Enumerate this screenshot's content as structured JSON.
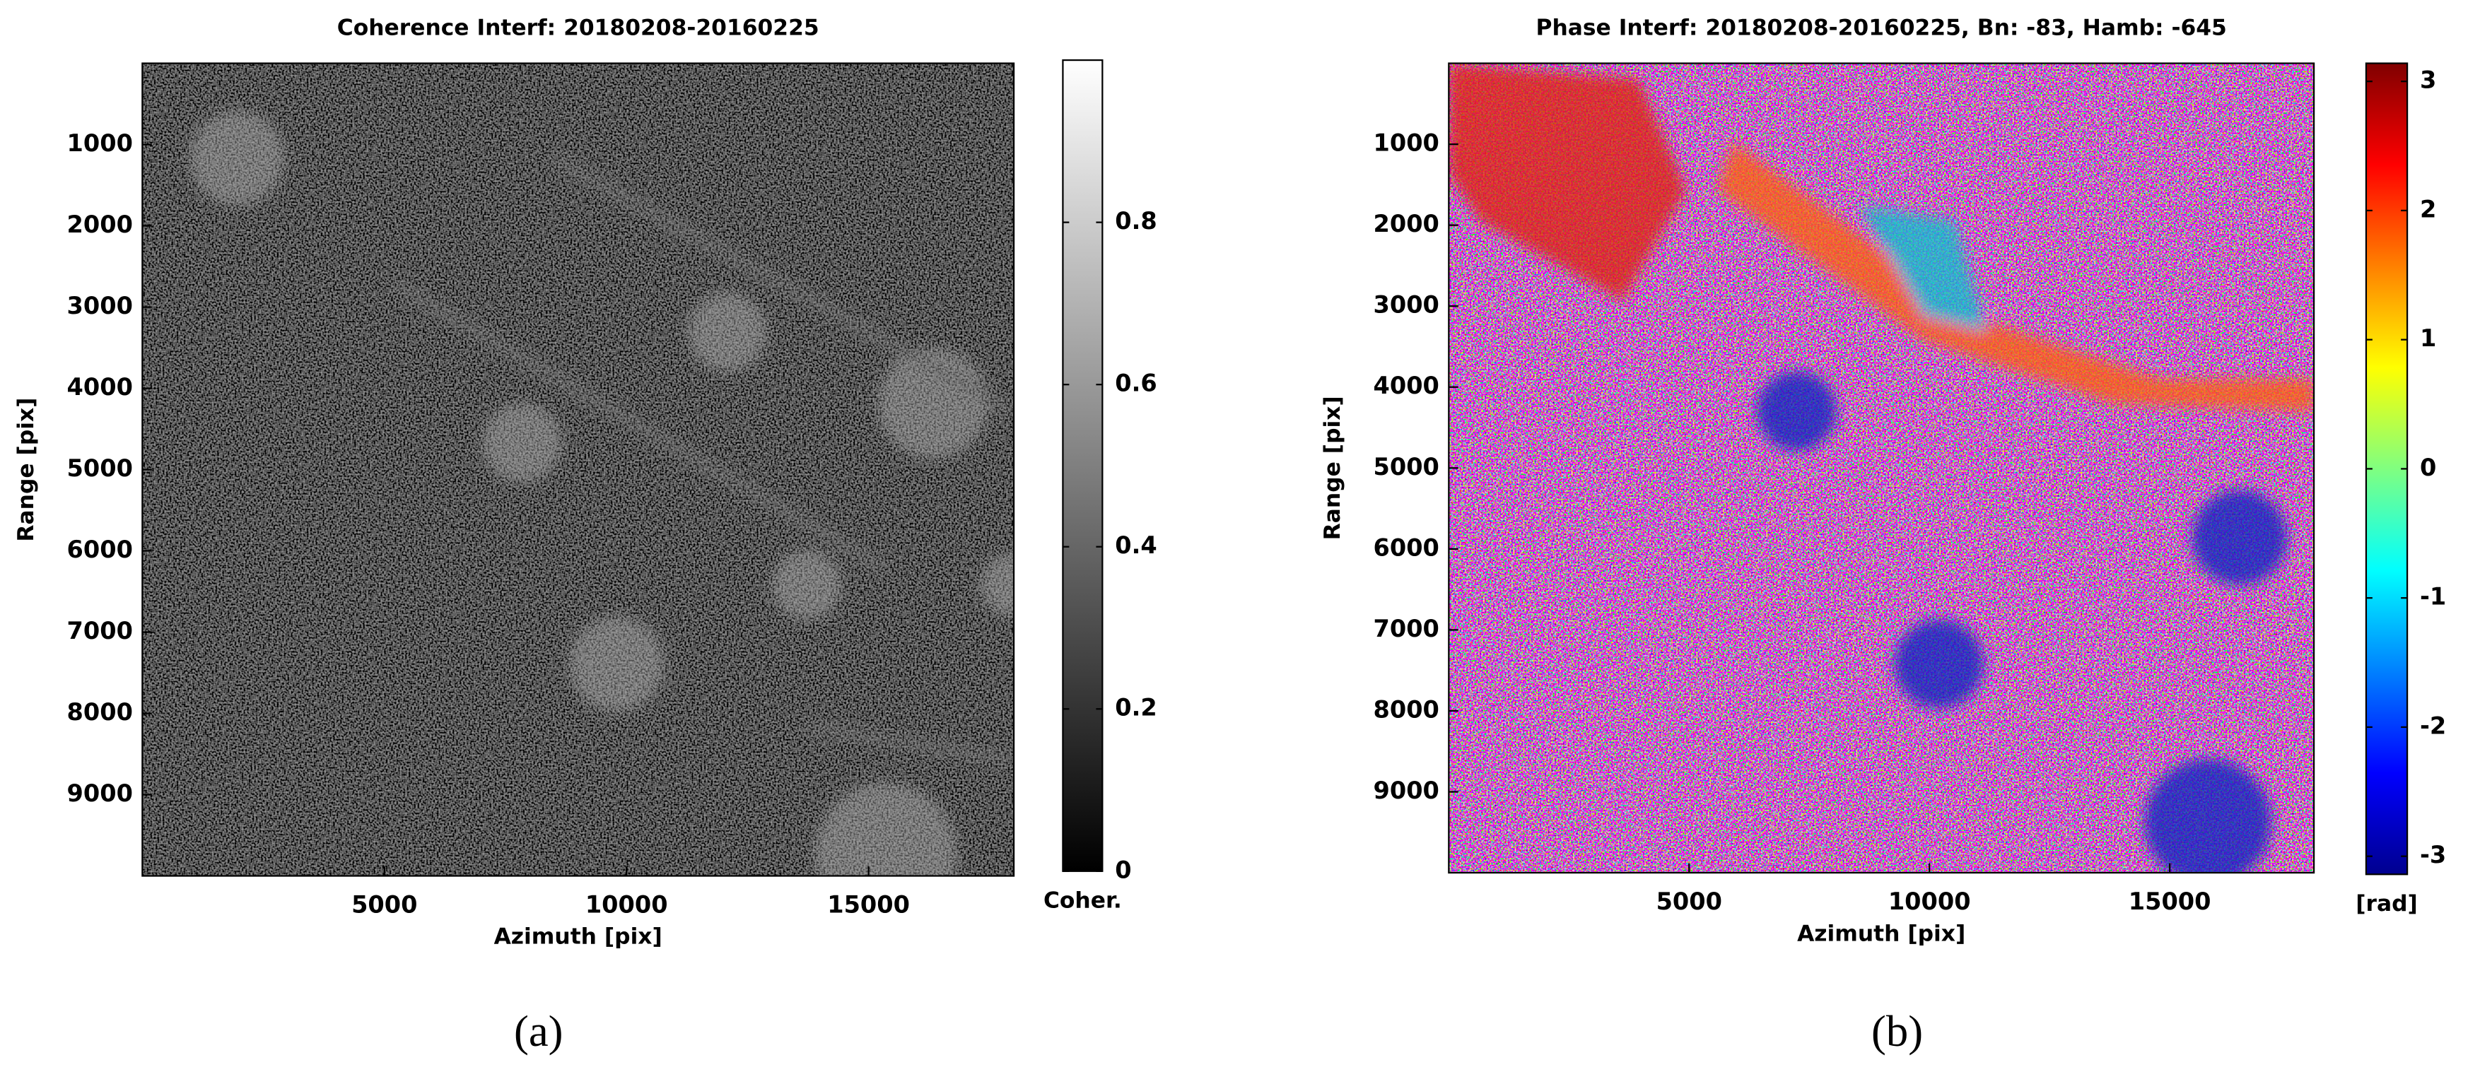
{
  "chart_data": [
    {
      "type": "image",
      "title": "Coherence Interf: 20180208-20160225",
      "x_label": "Azimuth [pix]",
      "y_label": "Range [pix]",
      "xlim": [
        0,
        18000
      ],
      "ylim": [
        0,
        10000
      ],
      "y_inverted": true,
      "xticks": [
        5000,
        10000,
        15000
      ],
      "yticks": [
        1000,
        2000,
        3000,
        4000,
        5000,
        6000,
        7000,
        8000,
        9000
      ],
      "colorbar": {
        "label": "Coher.",
        "lim": [
          0,
          1
        ],
        "ticks": [
          0,
          0.2,
          0.4,
          0.6,
          0.8
        ],
        "colormap": "gray"
      },
      "panel_label": "(a)"
    },
    {
      "type": "image",
      "title": "Phase Interf: 20180208-20160225, Bn: -83, Hamb: -645",
      "x_label": "Azimuth [pix]",
      "y_label": "Range [pix]",
      "xlim": [
        0,
        18000
      ],
      "ylim": [
        0,
        10000
      ],
      "y_inverted": true,
      "xticks": [
        5000,
        10000,
        15000
      ],
      "yticks": [
        1000,
        2000,
        3000,
        4000,
        5000,
        6000,
        7000,
        8000,
        9000
      ],
      "colorbar": {
        "label": "[rad]",
        "lim": [
          -3.14,
          3.14
        ],
        "ticks": [
          -3,
          -2,
          -1,
          0,
          1,
          2,
          3
        ],
        "colormap": "jet"
      },
      "panel_label": "(b)"
    }
  ]
}
